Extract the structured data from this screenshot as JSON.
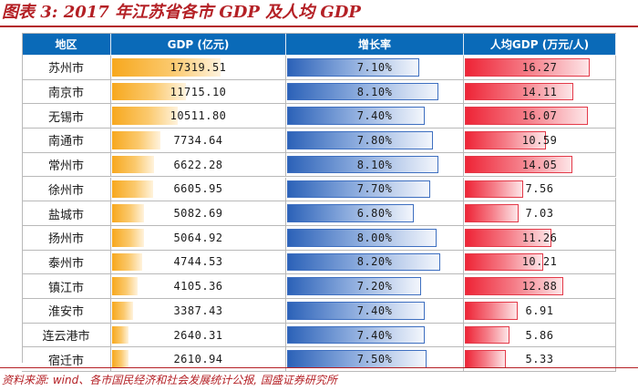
{
  "title": "图表 3: 2017 年江苏省各市 GDP 及人均 GDP",
  "source": "资料来源: wind、各市国民经济和社会发展统计公报, 国盛证券研究所",
  "colors": {
    "header": "#0a6ab8",
    "gdp_bar": "#f7a81e",
    "growth_bar": "#2c62b8",
    "per_capita_bar": "#ee2436",
    "accent": "#b42025"
  },
  "chart_data": {
    "type": "table",
    "columns": [
      "地区",
      "GDP (亿元)",
      "增长率",
      "人均GDP (万元/人)"
    ],
    "rows": [
      {
        "city": "苏州市",
        "gdp": 17319.51,
        "growth": 7.1,
        "per_capita": 16.27
      },
      {
        "city": "南京市",
        "gdp": 11715.1,
        "growth": 8.1,
        "per_capita": 14.11
      },
      {
        "city": "无锡市",
        "gdp": 10511.8,
        "growth": 7.4,
        "per_capita": 16.07
      },
      {
        "city": "南通市",
        "gdp": 7734.64,
        "growth": 7.8,
        "per_capita": 10.59
      },
      {
        "city": "常州市",
        "gdp": 6622.28,
        "growth": 8.1,
        "per_capita": 14.05
      },
      {
        "city": "徐州市",
        "gdp": 6605.95,
        "growth": 7.7,
        "per_capita": 7.56
      },
      {
        "city": "盐城市",
        "gdp": 5082.69,
        "growth": 6.8,
        "per_capita": 7.03
      },
      {
        "city": "扬州市",
        "gdp": 5064.92,
        "growth": 8.0,
        "per_capita": 11.26
      },
      {
        "city": "泰州市",
        "gdp": 4744.53,
        "growth": 8.2,
        "per_capita": 10.21
      },
      {
        "city": "镇江市",
        "gdp": 4105.36,
        "growth": 7.2,
        "per_capita": 12.88
      },
      {
        "city": "淮安市",
        "gdp": 3387.43,
        "growth": 7.4,
        "per_capita": 6.91
      },
      {
        "city": "连云港市",
        "gdp": 2640.31,
        "growth": 7.4,
        "per_capita": 5.86
      },
      {
        "city": "宿迁市",
        "gdp": 2610.94,
        "growth": 7.5,
        "per_capita": 5.33
      }
    ],
    "display": {
      "gdp": [
        "17319.51",
        "11715.10",
        "10511.80",
        "7734.64",
        "6622.28",
        "6605.95",
        "5082.69",
        "5064.92",
        "4744.53",
        "4105.36",
        "3387.43",
        "2640.31",
        "2610.94"
      ],
      "growth": [
        "7.10%",
        "8.10%",
        "7.40%",
        "7.80%",
        "8.10%",
        "7.70%",
        "6.80%",
        "8.00%",
        "8.20%",
        "7.20%",
        "7.40%",
        "7.40%",
        "7.50%"
      ],
      "per_capita": [
        "16.27",
        "14.11",
        "16.07",
        "10.59",
        "14.05",
        "7.56",
        "7.03",
        "11.26",
        "10.21",
        "12.88",
        "6.91",
        "5.86",
        "5.33"
      ]
    },
    "bar_scale": {
      "gdp_max": 17319.51,
      "growth_max": 8.2,
      "per_capita_max": 16.27
    }
  }
}
